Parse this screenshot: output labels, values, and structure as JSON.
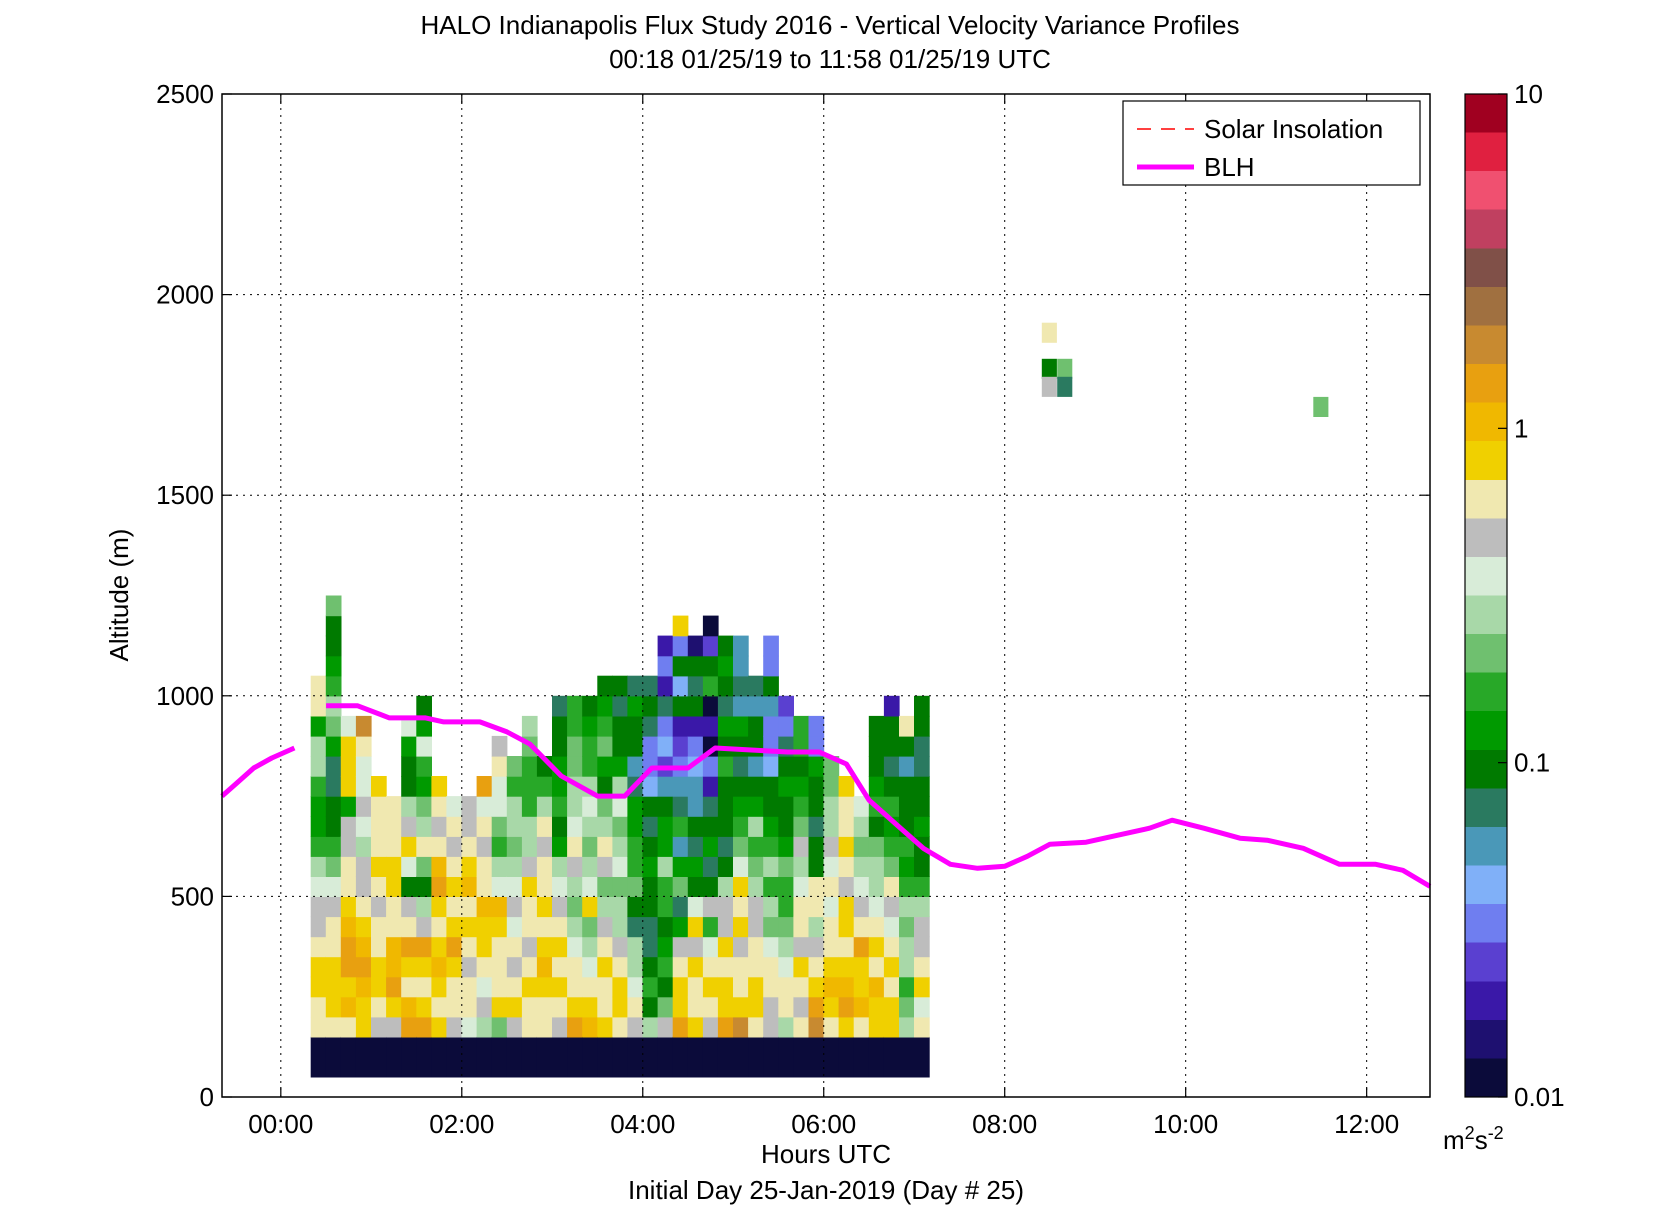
{
  "chart_data": {
    "type": "heatmap",
    "title": "HALO Indianapolis Flux Study 2016 - Vertical Velocity Variance Profiles",
    "subtitle": "00:18 01/25/19 to 11:58 01/25/19  UTC",
    "xlabel": "Hours UTC",
    "xlabel2": "Initial Day 25-Jan-2019 (Day # 25)",
    "ylabel": "Altitude (m)",
    "xlim": [
      -0.65,
      12.7
    ],
    "ylim": [
      0,
      2500
    ],
    "x_ticks": [
      0,
      2,
      4,
      6,
      8,
      10,
      12
    ],
    "x_tick_labels": [
      "00:00",
      "02:00",
      "04:00",
      "06:00",
      "08:00",
      "10:00",
      "12:00"
    ],
    "y_ticks": [
      0,
      500,
      1000,
      1500,
      2000,
      2500
    ],
    "y_tick_labels": [
      "0",
      "500",
      "1000",
      "1500",
      "2000",
      "2500"
    ],
    "grid": true,
    "legend_position": "top-right",
    "legend": [
      {
        "label": "Solar Insolation",
        "color": "#ff0000",
        "style": "dashed"
      },
      {
        "label": "BLH",
        "color": "#ff00ff",
        "style": "solid"
      }
    ],
    "colorbar": {
      "scale": "log",
      "range": [
        0.01,
        10
      ],
      "tick_values": [
        0.01,
        0.1,
        1,
        10
      ],
      "tick_labels": [
        "0.01",
        "0.1",
        "1",
        "10"
      ],
      "unit_base": "m",
      "unit_sup1": "2",
      "unit_mid": "s",
      "unit_sup2": "-2",
      "colors": [
        "#0b0b3a",
        "#1e1070",
        "#3a18a8",
        "#5a40d0",
        "#6f7ef0",
        "#80b0f8",
        "#4a98b8",
        "#2a7a60",
        "#007a00",
        "#009a00",
        "#28a828",
        "#6fc06f",
        "#a8d8a8",
        "#d8ecd8",
        "#bdbdbd",
        "#f0e8b0",
        "#f0d000",
        "#f0b800",
        "#e8a010",
        "#c88a30",
        "#a07040",
        "#805048",
        "#c04060",
        "#f05070",
        "#e02040",
        "#a00020"
      ]
    },
    "x_start": 0.33,
    "dx": 0.1667,
    "y_start": 100,
    "dy": 50,
    "variance_profiles": [
      [
        0.01,
        0.6,
        0.7,
        0.8,
        0.9,
        0.6,
        0.5,
        0.45,
        0.35,
        0.28,
        0.15,
        0.12,
        0.12,
        0.18,
        0.25,
        0.3,
        0.12,
        0.7,
        0.6
      ],
      [
        0.01,
        0.6,
        0.8,
        0.9,
        0.8,
        0.7,
        0.6,
        0.45,
        0.35,
        0.22,
        0.16,
        0.1,
        0.09,
        0.08,
        0.08,
        0.12,
        0.2,
        0.25,
        0.18,
        0.12,
        0.09,
        0.09,
        0.2
      ],
      [
        0.01,
        0.7,
        1.0,
        0.8,
        1.5,
        1.3,
        1.1,
        0.9,
        0.7,
        0.6,
        0.5,
        0.45,
        0.12,
        0.9,
        0.9,
        0.9,
        0.35
      ],
      [
        0.01,
        0.8,
        0.9,
        1.1,
        1.2,
        1.0,
        0.8,
        0.7,
        0.5,
        0.45,
        0.3,
        0.35,
        0.5,
        0.4,
        0.4,
        0.7,
        2.0
      ],
      [
        0.01,
        0.5,
        0.7,
        0.8,
        0.9,
        0.7,
        0.6,
        0.5,
        0.7,
        0.8,
        0.6,
        0.7,
        0.7,
        0.8
      ],
      [
        0.01,
        0.5,
        0.8,
        1.2,
        1.0,
        1.1,
        0.7,
        0.6,
        0.9,
        0.8,
        0.7,
        0.6,
        0.6
      ],
      [
        0.01,
        1.5,
        1.1,
        0.7,
        0.9,
        1.4,
        0.7,
        0.5,
        0.09,
        0.4,
        0.8,
        0.5,
        0.25,
        0.1,
        0.09,
        0.12,
        0.4
      ],
      [
        0.01,
        1.3,
        0.9,
        0.7,
        0.8,
        1.2,
        0.5,
        0.3,
        0.09,
        0.2,
        0.6,
        0.3,
        0.2,
        0.12,
        0.15,
        0.35,
        0.11,
        0.09
      ],
      [
        0.01,
        0.8,
        0.7,
        0.9,
        1.1,
        0.9,
        0.7,
        0.8,
        1.2,
        1.0,
        0.7,
        0.5,
        0.6,
        0.8
      ],
      [
        0.01,
        0.5,
        0.7,
        0.6,
        0.9,
        1.2,
        0.8,
        0.6,
        0.8,
        0.6,
        0.5,
        0.6,
        0.4
      ],
      [
        0.01,
        0.4,
        0.6,
        0.7,
        0.5,
        0.6,
        0.9,
        0.7,
        1.1,
        0.8,
        0.6,
        0.5,
        0.5
      ],
      [
        0.01,
        0.3,
        0.5,
        0.4,
        0.7,
        0.9,
        0.8,
        1.1,
        0.7,
        0.6,
        0.5,
        0.7,
        0.4,
        1.2
      ],
      [
        0.01,
        0.22,
        0.8,
        0.6,
        0.7,
        0.6,
        0.9,
        1.0,
        0.4,
        0.28,
        0.18,
        0.2,
        0.35,
        0.4,
        0.6,
        0.5
      ],
      [
        0.01,
        0.5,
        0.9,
        0.7,
        0.5,
        0.6,
        0.4,
        0.5,
        0.4,
        0.3,
        0.2,
        0.25,
        0.3,
        0.18,
        0.2
      ],
      [
        0.01,
        0.6,
        0.7,
        0.8,
        0.6,
        0.5,
        0.7,
        0.6,
        0.9,
        0.5,
        0.3,
        0.25,
        0.18,
        0.15,
        0.15,
        0.22,
        0.28
      ],
      [
        0.01,
        0.7,
        0.6,
        0.9,
        1.1,
        0.8,
        0.6,
        0.8,
        0.7,
        0.6,
        0.5,
        0.7,
        0.3,
        0.15,
        0.1
      ],
      [
        0.01,
        0.5,
        0.6,
        0.8,
        0.7,
        0.9,
        0.7,
        0.5,
        0.4,
        0.3,
        0.14,
        0.1,
        0.15,
        0.11,
        0.12,
        0.1,
        0.1,
        0.08
      ],
      [
        0.01,
        1.2,
        0.8,
        0.7,
        0.6,
        0.35,
        0.25,
        0.2,
        0.3,
        0.5,
        0.6,
        0.4,
        0.3,
        0.25,
        0.2,
        0.22,
        0.16,
        0.15
      ],
      [
        0.01,
        1.1,
        0.9,
        0.7,
        0.4,
        0.3,
        0.2,
        0.8,
        0.4,
        0.3,
        0.2,
        0.3,
        0.4,
        0.28,
        0.15,
        0.17,
        0.12,
        0.09
      ],
      [
        0.01,
        0.8,
        0.7,
        0.6,
        0.8,
        0.7,
        0.5,
        0.3,
        0.2,
        0.5,
        0.6,
        0.3,
        0.2,
        0.1,
        0.12,
        0.2,
        0.15,
        0.11,
        0.09
      ],
      [
        0.01,
        0.6,
        0.8,
        0.9,
        0.7,
        0.5,
        0.3,
        0.25,
        0.2,
        0.4,
        0.3,
        0.22,
        0.35,
        0.28,
        0.12,
        0.1,
        0.09,
        0.08,
        0.09
      ],
      [
        0.01,
        0.5,
        0.6,
        0.4,
        0.25,
        0.3,
        0.08,
        0.09,
        0.2,
        0.15,
        0.18,
        0.14,
        0.12,
        0.08,
        0.06,
        0.1,
        0.09,
        0.11,
        0.08
      ],
      [
        0.01,
        0.3,
        0.1,
        0.15,
        0.09,
        0.07,
        0.08,
        0.1,
        0.09,
        0.12,
        0.1,
        0.08,
        0.09,
        0.04,
        0.03,
        0.035,
        0.08,
        0.09,
        0.07
      ],
      [
        0.01,
        0.5,
        0.2,
        0.09,
        0.15,
        0.12,
        0.09,
        0.16,
        0.18,
        0.25,
        0.13,
        0.12,
        0.1,
        0.06,
        0.025,
        0.04,
        0.03,
        0.08,
        0.02,
        0.03,
        0.02
      ],
      [
        0.01,
        1.2,
        0.9,
        0.8,
        0.6,
        0.45,
        0.14,
        0.08,
        0.2,
        0.12,
        0.05,
        0.15,
        0.08,
        0.06,
        0.03,
        0.025,
        0.02,
        0.09,
        0.04,
        0.1,
        0.03,
        0.8
      ],
      [
        0.01,
        0.9,
        0.6,
        0.7,
        0.9,
        0.5,
        0.8,
        0.4,
        0.09,
        0.12,
        0.07,
        0.1,
        0.06,
        0.05,
        0.04,
        0.03,
        0.02,
        0.09,
        0.08,
        0.1,
        0.015
      ],
      [
        0.01,
        0.45,
        0.7,
        0.8,
        0.6,
        0.4,
        0.15,
        0.5,
        0.09,
        0.08,
        0.14,
        0.09,
        0.07,
        0.02,
        0.03,
        0.012,
        0.02,
        0.012,
        0.15,
        0.1,
        0.025,
        0.01
      ],
      [
        0.01,
        1.2,
        0.8,
        0.9,
        0.6,
        0.8,
        0.5,
        0.45,
        0.3,
        0.09,
        0.08,
        0.1,
        0.09,
        0.1,
        0.15,
        0.09,
        0.12,
        0.08,
        0.09,
        0.12,
        0.1
      ],
      [
        0.01,
        1.6,
        0.9,
        0.6,
        0.7,
        0.5,
        0.8,
        0.6,
        0.9,
        0.4,
        0.2,
        0.15,
        0.12,
        0.09,
        0.08,
        0.1,
        0.12,
        0.06,
        0.07,
        0.05,
        0.06
      ],
      [
        0.01,
        0.7,
        0.8,
        0.9,
        0.6,
        0.7,
        0.45,
        0.5,
        0.3,
        0.2,
        0.15,
        0.25,
        0.12,
        0.09,
        0.06,
        0.1,
        0.09,
        0.05,
        0.07
      ],
      [
        0.01,
        0.5,
        0.5,
        0.6,
        0.7,
        0.35,
        0.2,
        0.25,
        0.18,
        0.3,
        0.15,
        0.12,
        0.09,
        0.1,
        0.04,
        0.03,
        0.035,
        0.06,
        0.09,
        0.03,
        0.035
      ],
      [
        0.01,
        0.3,
        0.7,
        0.6,
        0.4,
        0.3,
        0.2,
        0.15,
        0.18,
        0.2,
        0.11,
        0.1,
        0.09,
        0.12,
        0.1,
        0.08,
        0.03,
        0.025
      ],
      [
        0.01,
        0.6,
        0.5,
        0.7,
        0.8,
        0.5,
        0.6,
        0.7,
        0.4,
        0.3,
        0.45,
        0.2,
        0.15,
        0.12,
        0.1,
        0.18,
        0.16
      ],
      [
        0.01,
        1.8,
        1.3,
        0.9,
        0.7,
        0.5,
        0.3,
        0.7,
        0.6,
        0.09,
        0.1,
        0.08,
        0.1,
        0.09,
        0.12,
        0.035,
        0.035
      ],
      [
        0.01,
        0.6,
        0.8,
        1.1,
        0.9,
        0.7,
        0.6,
        0.35,
        0.6,
        0.4,
        0.5,
        0.3,
        0.25,
        0.2,
        0.22
      ],
      [
        0.01,
        0.9,
        1.2,
        1.0,
        0.8,
        0.6,
        0.9,
        0.8,
        0.5,
        0.7,
        0.8,
        0.6,
        0.6,
        0.9
      ],
      [
        0.01,
        0.7,
        1.1,
        0.8,
        0.9,
        1.2,
        0.6,
        0.5,
        0.35,
        0.25,
        0.2,
        0.25,
        0.35
      ],
      [
        0.01,
        0.8,
        0.9,
        1.0,
        0.6,
        0.8,
        0.7,
        0.4,
        0.3,
        0.3,
        0.2,
        0.09,
        0.15,
        0.12,
        0.09,
        0.09,
        0.09
      ],
      [
        0.01,
        0.9,
        0.8,
        0.7,
        0.8,
        0.6,
        0.4,
        0.5,
        0.6,
        0.2,
        0.15,
        0.12,
        0.15,
        0.09,
        0.07,
        0.09,
        0.09,
        0.02
      ],
      [
        0.01,
        0.3,
        0.2,
        0.15,
        0.3,
        0.25,
        0.2,
        0.3,
        0.15,
        0.12,
        0.15,
        0.1,
        0.1,
        0.09,
        0.06,
        0.09,
        0.7
      ],
      [
        0.01,
        0.7,
        0.4,
        0.9,
        0.6,
        0.5,
        0.45,
        0.25,
        0.15,
        0.1,
        0.09,
        0.12,
        0.09,
        0.1,
        0.08,
        0.07,
        0.09,
        0.09
      ]
    ],
    "upper_cells": [
      {
        "x": 8.41,
        "y": 1880,
        "value": 0.7
      },
      {
        "x": 8.41,
        "y": 1790,
        "value": 0.09
      },
      {
        "x": 8.41,
        "y": 1745,
        "value": 0.45
      },
      {
        "x": 8.58,
        "y": 1790,
        "value": 0.22
      },
      {
        "x": 8.58,
        "y": 1745,
        "value": 0.08
      },
      {
        "x": 11.41,
        "y": 1695,
        "value": 0.22
      }
    ],
    "blh": {
      "x": [
        -0.65,
        -0.5,
        -0.3,
        -0.1,
        0.15,
        0.3,
        0.5,
        0.85,
        1.2,
        1.6,
        1.8,
        2.2,
        2.5,
        2.75,
        3.1,
        3.5,
        3.8,
        4.1,
        4.5,
        4.8,
        5.2,
        5.6,
        5.95,
        6.25,
        6.5,
        6.8,
        7.1,
        7.4,
        7.7,
        8.0,
        8.25,
        8.5,
        8.9,
        9.2,
        9.6,
        9.85,
        10.2,
        10.6,
        10.9,
        11.3,
        11.7,
        12.1,
        12.4,
        12.7
      ],
      "y": [
        750,
        780,
        820,
        845,
        870,
        null,
        975,
        975,
        945,
        945,
        935,
        935,
        910,
        880,
        800,
        750,
        750,
        820,
        820,
        870,
        865,
        860,
        860,
        830,
        740,
        680,
        620,
        580,
        570,
        575,
        600,
        630,
        635,
        650,
        670,
        690,
        670,
        645,
        640,
        620,
        580,
        580,
        565,
        525
      ]
    }
  }
}
